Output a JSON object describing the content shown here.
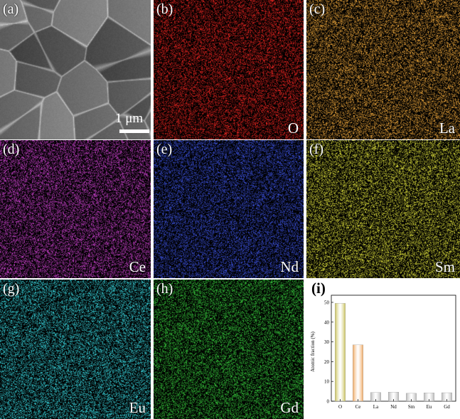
{
  "panels": [
    {
      "id": "a",
      "label": "(a)",
      "element": "",
      "type": "sem"
    },
    {
      "id": "b",
      "label": "(b)",
      "element": "O",
      "color": "#e0231f"
    },
    {
      "id": "c",
      "label": "(c)",
      "element": "La",
      "color": "#e8a33a"
    },
    {
      "id": "d",
      "label": "(d)",
      "element": "Ce",
      "color": "#c33fc6"
    },
    {
      "id": "e",
      "label": "(e)",
      "element": "Nd",
      "color": "#3a4fd6"
    },
    {
      "id": "f",
      "label": "(f)",
      "element": "Sm",
      "color": "#d6d83a"
    },
    {
      "id": "g",
      "label": "(g)",
      "element": "Eu",
      "color": "#37d0d8"
    },
    {
      "id": "h",
      "label": "(h)",
      "element": "Gd",
      "color": "#35c23a"
    }
  ],
  "scale_bar": {
    "text": "1 μm"
  },
  "panel_i_label": "(i)",
  "chart_data": {
    "type": "bar",
    "ylabel": "Atomic fraction (%)",
    "xlabel": "",
    "ylim": [
      0,
      50
    ],
    "yticks": [
      0,
      10,
      20,
      30,
      40,
      50
    ],
    "categories": [
      "O",
      "Ce",
      "La",
      "Nd",
      "Sm",
      "Eu",
      "Gd"
    ],
    "values": [
      49.5,
      28.5,
      4.4,
      4.6,
      4.0,
      4.2,
      4.3
    ],
    "bar_colors": [
      "#c9c25a",
      "#f0a860",
      "#b8b8b8",
      "#b8b8b8",
      "#b8b8b8",
      "#b8b8b8",
      "#b8b8b8"
    ]
  }
}
